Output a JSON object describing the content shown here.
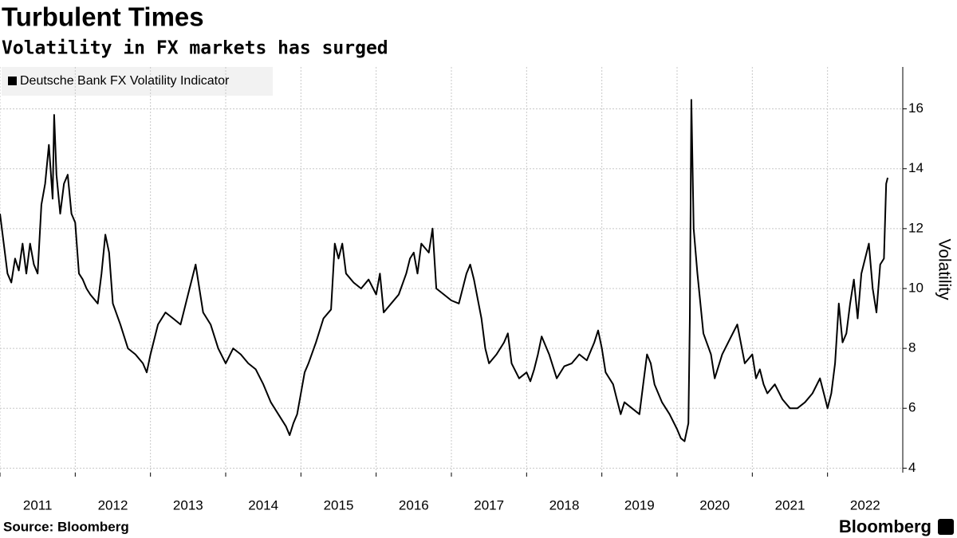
{
  "chart_data": {
    "type": "line",
    "title": "Turbulent Times",
    "subtitle": "Volatility in FX markets has surged",
    "y_label": "Volatility",
    "source": "Source: Bloomberg",
    "brand": "Bloomberg",
    "x": [
      2011.0,
      2011.05,
      2011.1,
      2011.15,
      2011.2,
      2011.25,
      2011.3,
      2011.35,
      2011.4,
      2011.45,
      2011.5,
      2011.55,
      2011.6,
      2011.65,
      2011.7,
      2011.72,
      2011.75,
      2011.8,
      2011.85,
      2011.9,
      2011.95,
      2012.0,
      2012.05,
      2012.1,
      2012.15,
      2012.2,
      2012.3,
      2012.35,
      2012.4,
      2012.45,
      2012.5,
      2012.6,
      2012.7,
      2012.8,
      2012.9,
      2012.95,
      2013.0,
      2013.1,
      2013.2,
      2013.3,
      2013.4,
      2013.5,
      2013.6,
      2013.65,
      2013.7,
      2013.8,
      2013.9,
      2014.0,
      2014.1,
      2014.2,
      2014.3,
      2014.4,
      2014.5,
      2014.6,
      2014.7,
      2014.8,
      2014.85,
      2014.9,
      2014.95,
      2015.0,
      2015.05,
      2015.1,
      2015.2,
      2015.3,
      2015.4,
      2015.45,
      2015.5,
      2015.55,
      2015.6,
      2015.7,
      2015.8,
      2015.9,
      2016.0,
      2016.05,
      2016.1,
      2016.2,
      2016.3,
      2016.4,
      2016.45,
      2016.5,
      2016.55,
      2016.6,
      2016.7,
      2016.75,
      2016.8,
      2016.9,
      2017.0,
      2017.1,
      2017.2,
      2017.25,
      2017.3,
      2017.4,
      2017.45,
      2017.5,
      2017.6,
      2017.7,
      2017.75,
      2017.8,
      2017.9,
      2018.0,
      2018.05,
      2018.1,
      2018.15,
      2018.2,
      2018.3,
      2018.4,
      2018.5,
      2018.6,
      2018.7,
      2018.8,
      2018.9,
      2018.95,
      2019.0,
      2019.05,
      2019.15,
      2019.2,
      2019.25,
      2019.3,
      2019.4,
      2019.5,
      2019.55,
      2019.6,
      2019.65,
      2019.7,
      2019.8,
      2019.9,
      2020.0,
      2020.05,
      2020.1,
      2020.15,
      2020.17,
      2020.19,
      2020.22,
      2020.27,
      2020.35,
      2020.45,
      2020.5,
      2020.6,
      2020.7,
      2020.8,
      2020.9,
      2021.0,
      2021.05,
      2021.1,
      2021.15,
      2021.2,
      2021.3,
      2021.4,
      2021.5,
      2021.6,
      2021.7,
      2021.8,
      2021.9,
      2021.95,
      2022.0,
      2022.05,
      2022.1,
      2022.15,
      2022.2,
      2022.25,
      2022.3,
      2022.35,
      2022.4,
      2022.45,
      2022.5,
      2022.55,
      2022.6,
      2022.65,
      2022.7,
      2022.75,
      2022.78,
      2022.8
    ],
    "series": [
      {
        "name": "Deutsche Bank FX Volatility Indicator",
        "color": "#000000",
        "values": [
          12.5,
          11.5,
          10.5,
          10.2,
          11,
          10.6,
          11.5,
          10.5,
          11.5,
          10.8,
          10.5,
          12.8,
          13.5,
          14.8,
          13,
          15.8,
          13.8,
          12.5,
          13.5,
          13.8,
          12.5,
          12.2,
          10.5,
          10.3,
          10,
          9.8,
          9.5,
          10.5,
          11.8,
          11.2,
          9.5,
          8.8,
          8,
          7.8,
          7.5,
          7.2,
          7.8,
          8.8,
          9.2,
          9,
          8.8,
          9.8,
          10.8,
          10,
          9.2,
          8.8,
          8,
          7.5,
          8,
          7.8,
          7.5,
          7.3,
          6.8,
          6.2,
          5.8,
          5.4,
          5.1,
          5.5,
          5.8,
          6.5,
          7.2,
          7.5,
          8.2,
          9,
          9.3,
          11.5,
          11,
          11.5,
          10.5,
          10.2,
          10,
          10.3,
          9.8,
          10.5,
          9.2,
          9.5,
          9.8,
          10.5,
          11,
          11.2,
          10.5,
          11.5,
          11.2,
          12,
          10,
          9.8,
          9.6,
          9.5,
          10.5,
          10.8,
          10.3,
          9,
          8,
          7.5,
          7.8,
          8.2,
          8.5,
          7.5,
          7,
          7.2,
          6.9,
          7.3,
          7.8,
          8.4,
          7.8,
          7,
          7.4,
          7.5,
          7.8,
          7.6,
          8.2,
          8.6,
          8,
          7.2,
          6.8,
          6.3,
          5.8,
          6.2,
          6,
          5.8,
          6.8,
          7.8,
          7.5,
          6.8,
          6.2,
          5.8,
          5.3,
          5,
          4.9,
          5.5,
          9,
          16.3,
          12,
          10.5,
          8.5,
          7.8,
          7,
          7.8,
          8.3,
          8.8,
          7.5,
          7.8,
          7,
          7.3,
          6.8,
          6.5,
          6.8,
          6.3,
          6,
          6,
          6.2,
          6.5,
          7,
          6.5,
          6,
          6.5,
          7.5,
          9.5,
          8.2,
          8.5,
          9.5,
          10.3,
          9,
          10.5,
          11,
          11.5,
          10,
          9.2,
          10.8,
          11,
          13.5,
          13.7
        ]
      }
    ],
    "xlim": [
      2011,
      2023
    ],
    "xticks": [
      2011,
      2012,
      2013,
      2014,
      2015,
      2016,
      2017,
      2018,
      2019,
      2020,
      2021,
      2022
    ],
    "ylim": [
      3.85,
      17.4
    ],
    "yticks": [
      4,
      6,
      8,
      10,
      12,
      14,
      16
    ],
    "grid": true
  }
}
